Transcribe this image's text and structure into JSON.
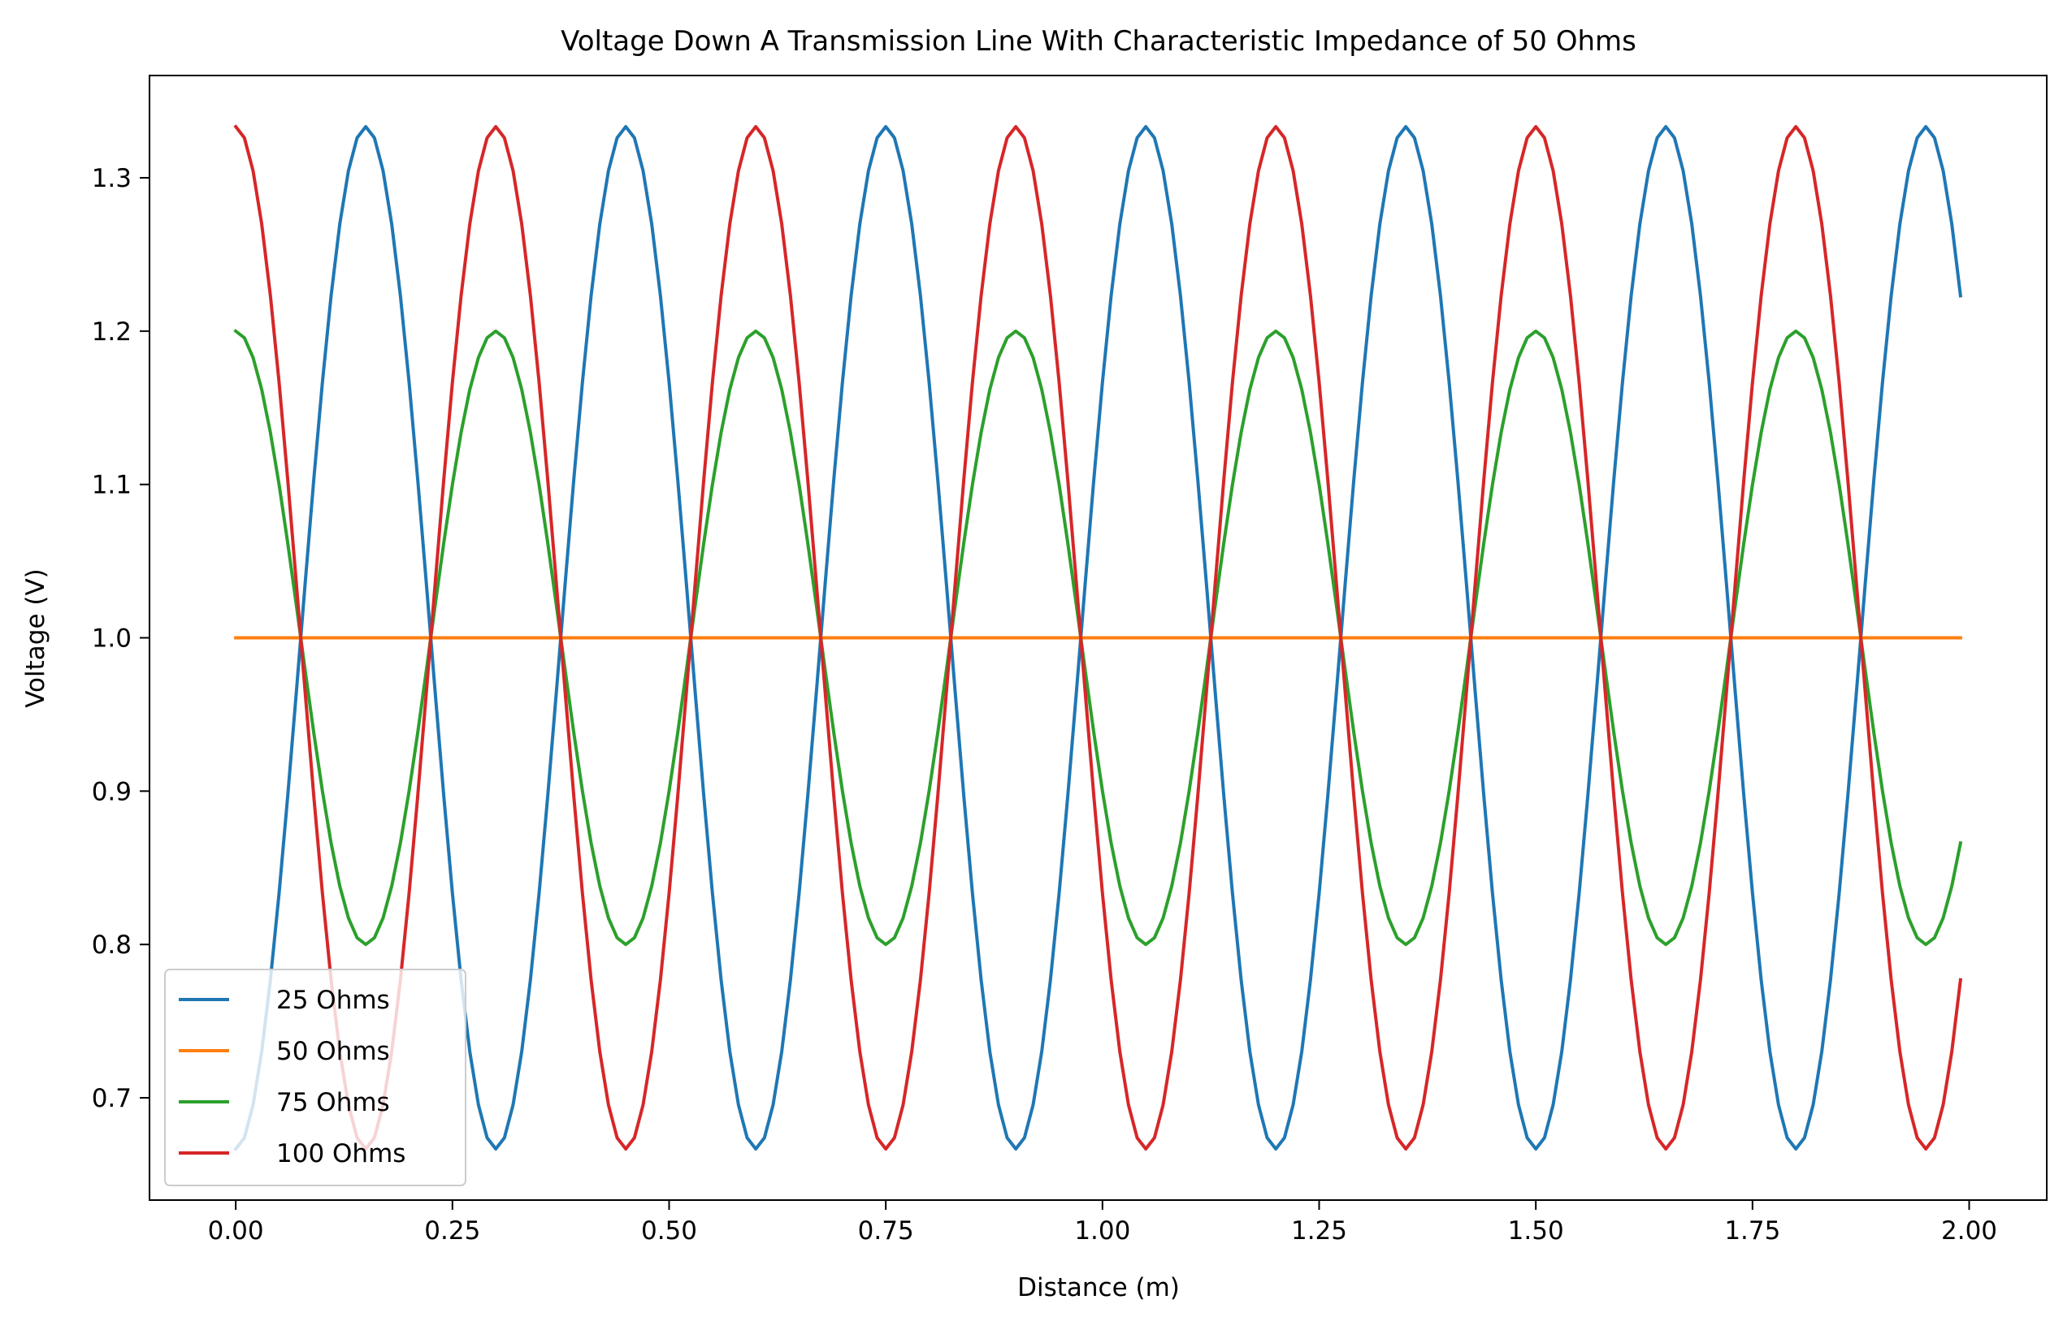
{
  "chart_data": {
    "type": "line",
    "title": "Voltage Down A Transmission Line With Characteristic Impedance of 50 Ohms",
    "xlabel": "Distance (m)",
    "ylabel": "Voltage (V)",
    "xlim": [
      -0.0995,
      2.0895
    ],
    "ylim": [
      0.6333,
      1.3667
    ],
    "x_ticks": [
      0.0,
      0.25,
      0.5,
      0.75,
      1.0,
      1.25,
      1.5,
      1.75,
      2.0
    ],
    "x_tick_labels": [
      "0.00",
      "0.25",
      "0.50",
      "0.75",
      "1.00",
      "1.25",
      "1.50",
      "1.75",
      "2.00"
    ],
    "y_ticks": [
      0.7,
      0.8,
      0.9,
      1.0,
      1.1,
      1.2,
      1.3
    ],
    "y_tick_labels": [
      "0.7",
      "0.8",
      "0.9",
      "1.0",
      "1.1",
      "1.2",
      "1.3"
    ],
    "grid": false,
    "legend_position": "lower-left",
    "x_range": {
      "start": 0.0,
      "stop": 1.99,
      "step": 0.01
    },
    "series": [
      {
        "name": "25 Ohms",
        "color": "#1f77b4",
        "formula": "1 - (1/3)*cos(2*pi*x/0.3)"
      },
      {
        "name": "50 Ohms",
        "color": "#ff7f0e",
        "formula": "1"
      },
      {
        "name": "75 Ohms",
        "color": "#2ca02c",
        "formula": "1 + 0.2*cos(2*pi*x/0.3)"
      },
      {
        "name": "100 Ohms",
        "color": "#d62728",
        "formula": "1 + (1/3)*cos(2*pi*x/0.3)"
      }
    ]
  }
}
